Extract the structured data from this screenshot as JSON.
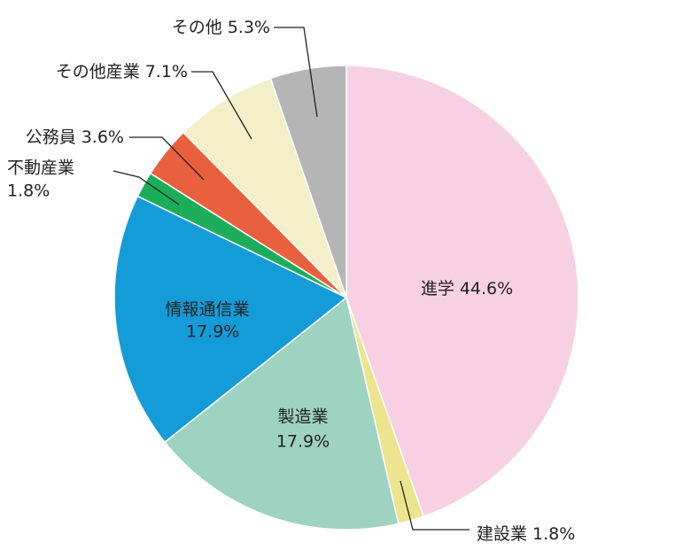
{
  "chart_data": {
    "type": "pie",
    "categories": [
      "進学",
      "建設業",
      "製造業",
      "情報通信業",
      "不動産業",
      "公務員",
      "その他産業",
      "その他"
    ],
    "values": [
      44.6,
      1.8,
      17.9,
      17.9,
      1.8,
      3.6,
      7.1,
      5.3
    ],
    "value_labels": [
      "44.6%",
      "1.8%",
      "17.9%",
      "17.9%",
      "1.8%",
      "3.6%",
      "7.1%",
      "5.3%"
    ],
    "colors": [
      "#f7d1e3",
      "#ece58e",
      "#9dd3c0",
      "#149cd8",
      "#1bad5a",
      "#e9603f",
      "#f3efc8",
      "#b4b5b4"
    ]
  }
}
